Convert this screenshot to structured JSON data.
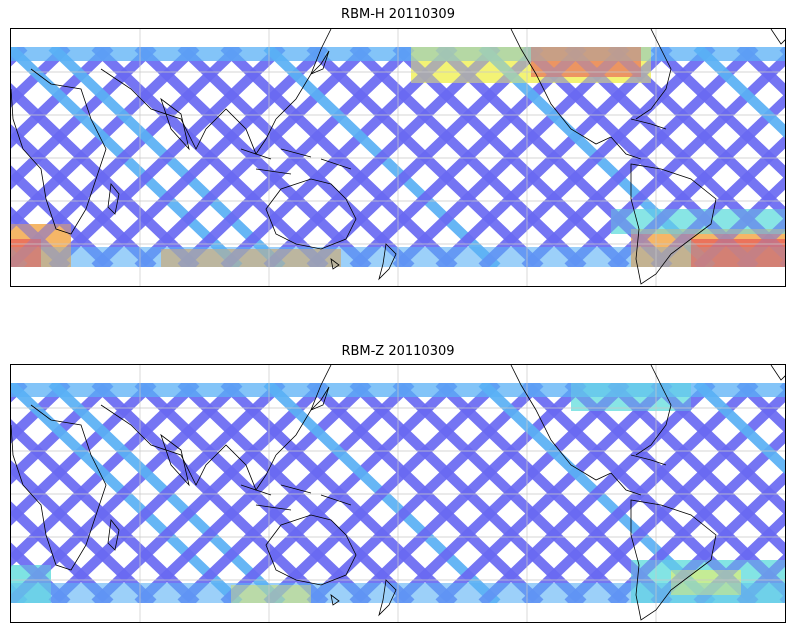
{
  "figure": {
    "panels": [
      {
        "title": "RBM-H 20110309",
        "variable": "RBM-H",
        "date": "20110309",
        "colormap": "jet"
      },
      {
        "title": "RBM-Z 20110309",
        "variable": "RBM-Z",
        "date": "20110309",
        "colormap": "jet"
      }
    ],
    "colors": {
      "track_low": "#6a6af2",
      "track_mid": "#5ab0f5",
      "cyan": "#6ee0e0",
      "yellow": "#f2f26a",
      "orange": "#f5b05a",
      "red": "#e85a5a",
      "coast": "#000000",
      "grid": "#c8c8c8"
    }
  }
}
